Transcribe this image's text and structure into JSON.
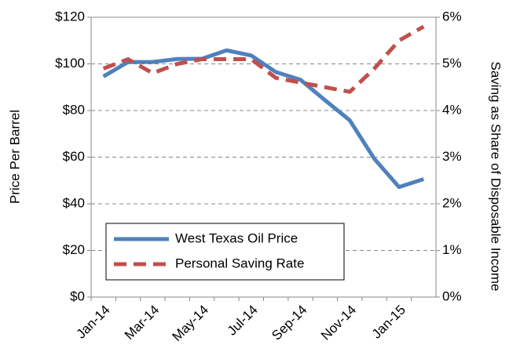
{
  "chart_data": {
    "type": "line",
    "categories": [
      "Jan-14",
      null,
      "Mar-14",
      null,
      "May-14",
      null,
      "Jul-14",
      null,
      "Sep-14",
      null,
      "Nov-14",
      null,
      "Jan-15",
      null
    ],
    "series": [
      {
        "name": "West Texas Oil Price",
        "color": "#4f81bd",
        "values": [
          94.6,
          100.8,
          100.8,
          102.1,
          102.2,
          105.8,
          103.6,
          96.5,
          93.2,
          84.4,
          75.8,
          59.3,
          47.2,
          50.6
        ]
      },
      {
        "name": "Personal Saving Rate",
        "color": "#c0504d",
        "axis": "y2",
        "values": [
          4.9,
          5.1,
          4.8,
          5.0,
          5.1,
          5.1,
          5.1,
          4.7,
          4.6,
          4.5,
          4.4,
          4.9,
          5.5,
          5.8
        ]
      }
    ],
    "ylabel": "Price Per Barrel",
    "y2label": "Saving as Share of Disposable Income",
    "ylim": [
      0,
      120
    ],
    "yticks": [
      {
        "value": 0,
        "label": "$0"
      },
      {
        "value": 20,
        "label": "$20"
      },
      {
        "value": 40,
        "label": "$40"
      },
      {
        "value": 60,
        "label": "$60"
      },
      {
        "value": 80,
        "label": "$80"
      },
      {
        "value": 100,
        "label": "$100"
      },
      {
        "value": 120,
        "label": "$120"
      }
    ],
    "y2lim": [
      0,
      6
    ],
    "y2ticks": [
      {
        "value": 0,
        "label": "0%"
      },
      {
        "value": 1,
        "label": "1%"
      },
      {
        "value": 2,
        "label": "2%"
      },
      {
        "value": 3,
        "label": "3%"
      },
      {
        "value": 4,
        "label": "4%"
      },
      {
        "value": 5,
        "label": "5%"
      },
      {
        "value": 6,
        "label": "6%"
      }
    ],
    "grid": true,
    "legend": "lower left"
  }
}
